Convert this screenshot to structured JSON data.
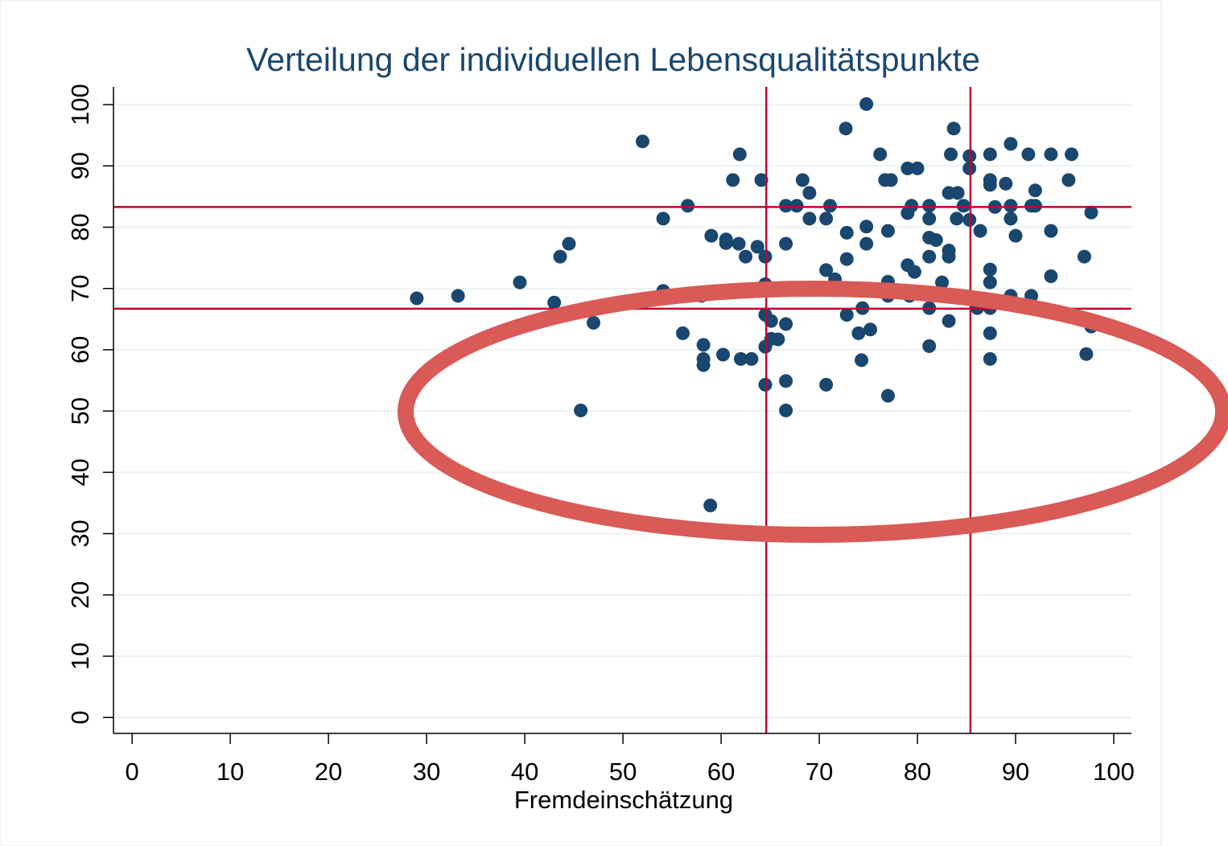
{
  "chart_data": {
    "type": "scatter",
    "title": "Verteilung der individuellen Lebensqualitätspunkte",
    "xlabel": "Fremdeinschätzung",
    "color": "#1a476f",
    "x": [
      29.0,
      33.2,
      39.5,
      43.0,
      43.6,
      44.5,
      45.7,
      47.0,
      52.0,
      54.1,
      54.1,
      56.6,
      56.1,
      58.2,
      58.2,
      58.2,
      59.0,
      58.9,
      58.0,
      60.2,
      60.5,
      60.5,
      61.2,
      61.8,
      61.9,
      62.0,
      62.5,
      63.1,
      63.7,
      64.1,
      64.5,
      64.5,
      64.5,
      64.5,
      64.5,
      65.1,
      65.1,
      65.8,
      66.6,
      66.6,
      66.6,
      66.6,
      66.6,
      67.7,
      68.3,
      69.0,
      69.0,
      70.7,
      70.7,
      70.7,
      71.1,
      71.6,
      72.7,
      72.8,
      72.8,
      72.8,
      74.0,
      74.3,
      74.4,
      74.8,
      74.8,
      74.8,
      75.2,
      76.2,
      76.7,
      77.3,
      77.0,
      77.0,
      77.0,
      77.0,
      79.0,
      80.0,
      79.0,
      79.4,
      79.0,
      79.7,
      79.2,
      81.2,
      81.2,
      81.2,
      81.9,
      81.2,
      81.2,
      81.2,
      82.5,
      83.2,
      83.4,
      83.7,
      84.1,
      84.0,
      83.2,
      83.2,
      83.2,
      84.7,
      85.3,
      85.3,
      85.3,
      86.4,
      86.1,
      87.4,
      87.4,
      87.4,
      87.4,
      87.4,
      87.4,
      87.4,
      87.4,
      87.9,
      89.0,
      89.5,
      89.5,
      89.5,
      90.0,
      89.5,
      91.3,
      91.6,
      92.0,
      92.0,
      91.6,
      93.6,
      93.6,
      93.6,
      95.4,
      95.7,
      97.0,
      97.2,
      97.7,
      97.7
    ],
    "y": [
      68.4,
      68.8,
      71.0,
      67.7,
      75.2,
      77.3,
      50.1,
      64.4,
      94.0,
      81.4,
      69.6,
      83.5,
      62.7,
      60.8,
      58.5,
      57.5,
      78.6,
      34.6,
      68.8,
      59.2,
      78.0,
      77.4,
      87.7,
      77.3,
      91.9,
      58.5,
      75.2,
      58.5,
      76.8,
      87.7,
      75.2,
      70.7,
      65.7,
      60.5,
      54.3,
      64.7,
      61.8,
      61.7,
      83.5,
      77.3,
      64.2,
      54.9,
      50.1,
      83.5,
      87.7,
      85.6,
      81.4,
      73.0,
      81.4,
      54.3,
      83.5,
      71.5,
      96.1,
      79.1,
      74.8,
      65.7,
      62.7,
      58.3,
      66.8,
      100.1,
      80.1,
      77.3,
      63.3,
      91.9,
      87.7,
      87.7,
      79.4,
      71.1,
      68.8,
      52.5,
      89.6,
      89.6,
      82.3,
      83.5,
      73.8,
      72.7,
      68.8,
      83.5,
      81.4,
      78.3,
      77.9,
      75.2,
      66.8,
      60.6,
      71.0,
      85.6,
      91.9,
      96.1,
      85.6,
      81.4,
      76.2,
      75.2,
      64.7,
      83.5,
      91.6,
      89.6,
      81.2,
      79.4,
      66.8,
      91.9,
      87.7,
      86.9,
      73.1,
      71.0,
      66.8,
      62.7,
      58.5,
      83.3,
      87.1,
      93.6,
      83.5,
      81.4,
      78.6,
      68.8,
      91.9,
      83.5,
      86.0,
      83.5,
      68.8,
      91.9,
      79.4,
      72.0,
      87.7,
      91.9,
      75.2,
      59.3,
      82.4,
      63.8
    ],
    "xlim": [
      -1.9,
      101.8
    ],
    "ylim": [
      -2.6,
      102.9
    ],
    "xticks": [
      0,
      10,
      20,
      30,
      40,
      50,
      60,
      70,
      80,
      90,
      100
    ],
    "yticks": [
      0,
      10,
      20,
      30,
      40,
      50,
      60,
      70,
      80,
      90,
      100
    ],
    "grid": true,
    "vlines": [
      64.6,
      85.4
    ],
    "hlines": [
      83.3,
      66.7
    ],
    "line_color": "#c10534"
  }
}
